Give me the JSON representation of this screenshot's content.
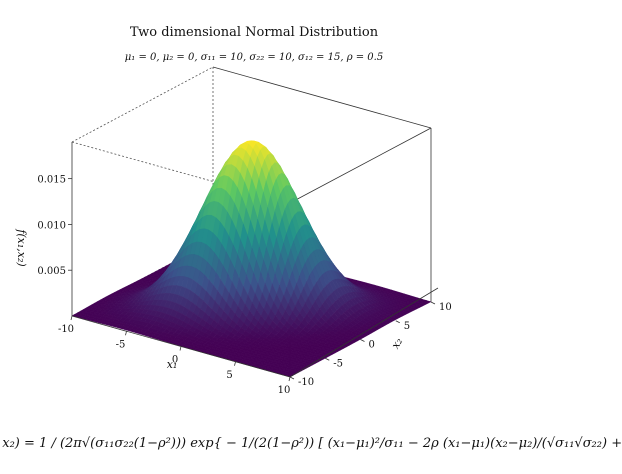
{
  "chart_data": {
    "type": "surface3d",
    "title": "Two dimensional Normal Distribution",
    "subtitle": "μ₁ = 0, μ₂ = 0, σ₁₁ = 10, σ₂₂ = 10, σ₁₂ = 15, ρ = 0.5",
    "xlabel": "x₁",
    "ylabel": "x₂",
    "zlabel": "f(x₁,x₂)",
    "xlim": [
      -10,
      10
    ],
    "ylim": [
      -10,
      10
    ],
    "zlim": [
      0,
      0.019
    ],
    "x_ticks": [
      "-10",
      "-5",
      "0",
      "5",
      "10"
    ],
    "y_ticks": [
      "-10",
      "-5",
      "0",
      "5",
      "10"
    ],
    "z_ticks": [
      "0.005",
      "0.010",
      "0.015"
    ],
    "z_tick_values": [
      0.005,
      0.01,
      0.015
    ],
    "parameters": {
      "mu1": 0,
      "mu2": 0,
      "sigma11": 10,
      "sigma22": 10,
      "sigma12": 15,
      "rho": 0.5
    },
    "peak_value": 0.0184,
    "colormap": [
      "#440154",
      "#3b528b",
      "#21918c",
      "#5ec962",
      "#fde725"
    ]
  },
  "formula": ", x₂) = 1 / (2π√(σ₁₁σ₂₂(1−ρ²))) exp{ − 1/(2(1−ρ²)) [ (x₁−μ₁)²/σ₁₁ − 2ρ (x₁−μ₁)(x₂−μ₂)/(√σ₁₁√σ₂₂) +"
}
